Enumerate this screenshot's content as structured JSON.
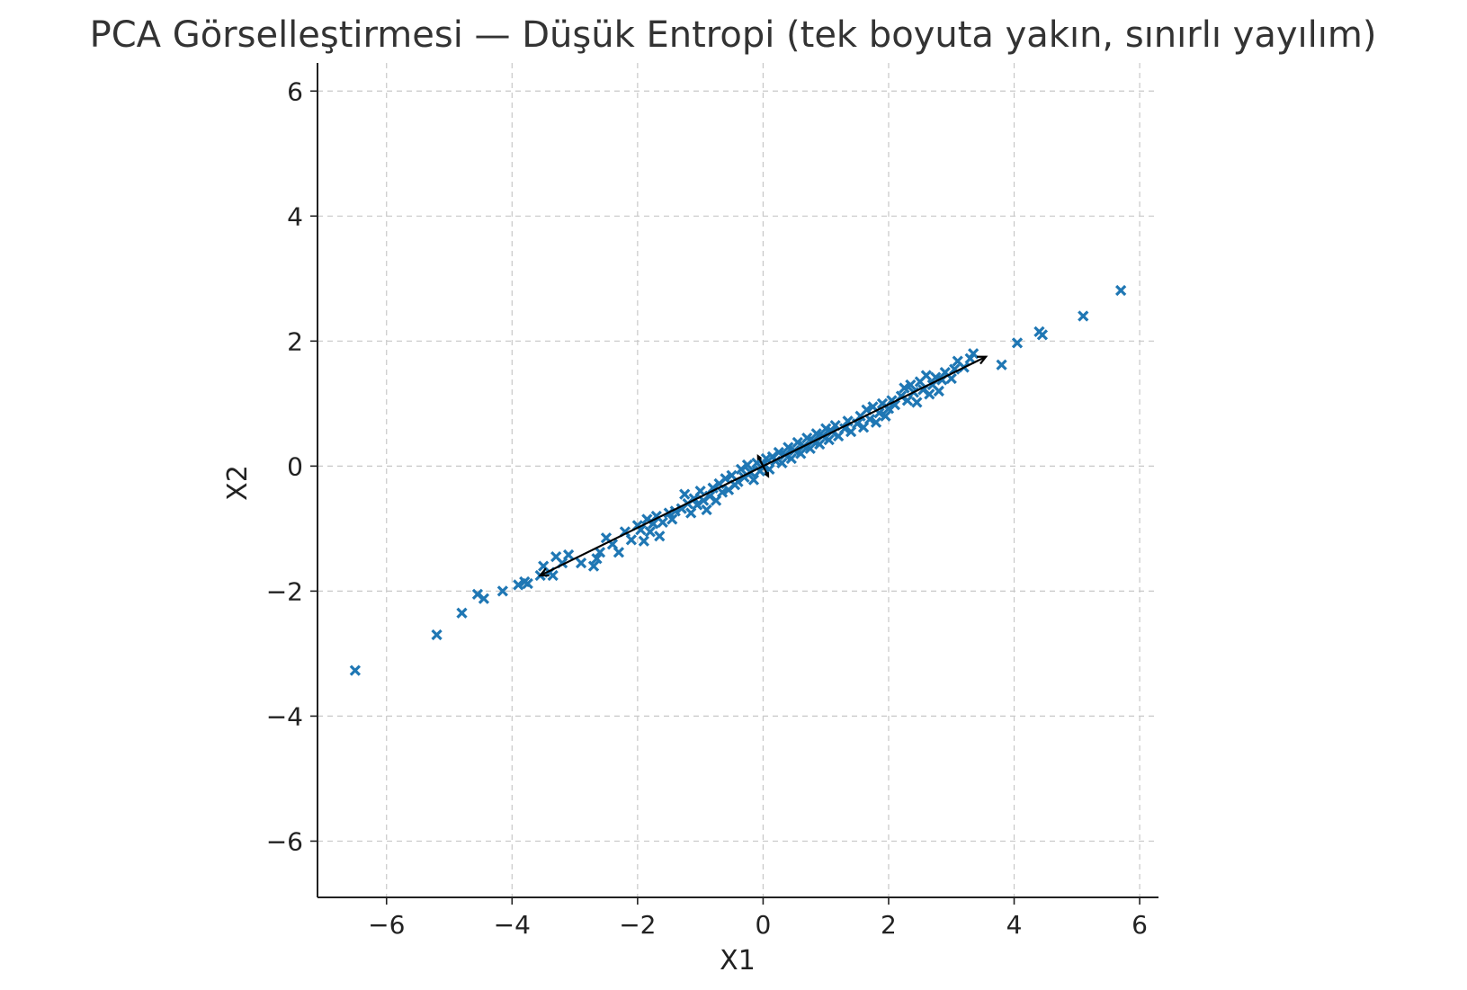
{
  "chart_data": {
    "type": "scatter",
    "title": "PCA Görselleştirmesi — Düşük Entropi (tek boyuta yakın, sınırlı yayılım)",
    "xlabel": "X1",
    "ylabel": "X2",
    "xlim": [
      -7.1,
      6.3
    ],
    "ylim": [
      -6.9,
      6.45
    ],
    "xticks": [
      -6,
      -4,
      -2,
      0,
      2,
      4,
      6
    ],
    "yticks": [
      -6,
      -4,
      -2,
      0,
      2,
      4,
      6
    ],
    "xtick_labels": [
      "−6",
      "−4",
      "−2",
      "0",
      "2",
      "4",
      "6"
    ],
    "ytick_labels": [
      "−6",
      "−4",
      "−2",
      "0",
      "2",
      "4",
      "6"
    ],
    "grid": true,
    "marker": "x",
    "color": "#1f77b4",
    "arrow_color": "#000000",
    "principal_components": [
      {
        "from": [
          0.0,
          0.0
        ],
        "to": [
          3.55,
          1.75
        ]
      },
      {
        "from": [
          0.0,
          0.0
        ],
        "to": [
          -3.55,
          -1.75
        ]
      },
      {
        "from": [
          0.0,
          0.0
        ],
        "to": [
          -0.08,
          0.16
        ]
      },
      {
        "from": [
          0.0,
          0.0
        ],
        "to": [
          0.08,
          -0.16
        ]
      }
    ],
    "points": [
      [
        -6.5,
        -3.27
      ],
      [
        -5.2,
        -2.7
      ],
      [
        -4.8,
        -2.35
      ],
      [
        -4.55,
        -2.05
      ],
      [
        -4.45,
        -2.12
      ],
      [
        -4.15,
        -2.0
      ],
      [
        -3.9,
        -1.9
      ],
      [
        -3.8,
        -1.85
      ],
      [
        -3.75,
        -1.88
      ],
      [
        -3.55,
        -1.75
      ],
      [
        -3.5,
        -1.6
      ],
      [
        -3.4,
        -1.7
      ],
      [
        -3.35,
        -1.75
      ],
      [
        -3.3,
        -1.45
      ],
      [
        -3.2,
        -1.55
      ],
      [
        -3.1,
        -1.42
      ],
      [
        -2.9,
        -1.55
      ],
      [
        -2.7,
        -1.6
      ],
      [
        -2.65,
        -1.48
      ],
      [
        -2.6,
        -1.38
      ],
      [
        -2.5,
        -1.15
      ],
      [
        -2.4,
        -1.25
      ],
      [
        -2.3,
        -1.38
      ],
      [
        -2.2,
        -1.05
      ],
      [
        -2.1,
        -1.18
      ],
      [
        -2.0,
        -0.95
      ],
      [
        -1.95,
        -1.02
      ],
      [
        -1.9,
        -1.2
      ],
      [
        -1.85,
        -0.85
      ],
      [
        -1.8,
        -1.05
      ],
      [
        -1.75,
        -0.92
      ],
      [
        -1.7,
        -0.8
      ],
      [
        -1.65,
        -1.12
      ],
      [
        -1.6,
        -0.9
      ],
      [
        -1.5,
        -0.75
      ],
      [
        -1.45,
        -0.85
      ],
      [
        -1.4,
        -0.72
      ],
      [
        -1.3,
        -0.68
      ],
      [
        -1.25,
        -0.45
      ],
      [
        -1.2,
        -0.6
      ],
      [
        -1.15,
        -0.75
      ],
      [
        -1.1,
        -0.52
      ],
      [
        -1.05,
        -0.62
      ],
      [
        -1.0,
        -0.4
      ],
      [
        -0.95,
        -0.55
      ],
      [
        -0.9,
        -0.7
      ],
      [
        -0.85,
        -0.48
      ],
      [
        -0.8,
        -0.35
      ],
      [
        -0.75,
        -0.55
      ],
      [
        -0.7,
        -0.28
      ],
      [
        -0.65,
        -0.42
      ],
      [
        -0.6,
        -0.2
      ],
      [
        -0.55,
        -0.38
      ],
      [
        -0.5,
        -0.15
      ],
      [
        -0.45,
        -0.3
      ],
      [
        -0.4,
        -0.25
      ],
      [
        -0.35,
        -0.05
      ],
      [
        -0.3,
        -0.18
      ],
      [
        -0.25,
        0.02
      ],
      [
        -0.2,
        -0.1
      ],
      [
        -0.15,
        -0.22
      ],
      [
        -0.1,
        0.05
      ],
      [
        -0.05,
        -0.08
      ],
      [
        0.0,
        0.02
      ],
      [
        0.05,
        0.12
      ],
      [
        0.1,
        -0.05
      ],
      [
        0.15,
        0.15
      ],
      [
        0.2,
        0.08
      ],
      [
        0.25,
        0.22
      ],
      [
        0.3,
        0.05
      ],
      [
        0.35,
        0.18
      ],
      [
        0.4,
        0.3
      ],
      [
        0.45,
        0.12
      ],
      [
        0.5,
        0.25
      ],
      [
        0.55,
        0.38
      ],
      [
        0.6,
        0.2
      ],
      [
        0.65,
        0.32
      ],
      [
        0.7,
        0.45
      ],
      [
        0.75,
        0.28
      ],
      [
        0.8,
        0.4
      ],
      [
        0.85,
        0.52
      ],
      [
        0.9,
        0.35
      ],
      [
        0.95,
        0.48
      ],
      [
        1.0,
        0.6
      ],
      [
        1.05,
        0.42
      ],
      [
        1.1,
        0.55
      ],
      [
        1.15,
        0.65
      ],
      [
        1.2,
        0.48
      ],
      [
        1.3,
        0.6
      ],
      [
        1.35,
        0.72
      ],
      [
        1.4,
        0.55
      ],
      [
        1.5,
        0.68
      ],
      [
        1.55,
        0.8
      ],
      [
        1.6,
        0.62
      ],
      [
        1.65,
        0.9
      ],
      [
        1.7,
        0.75
      ],
      [
        1.75,
        0.95
      ],
      [
        1.8,
        0.7
      ],
      [
        1.85,
        0.85
      ],
      [
        1.9,
        1.0
      ],
      [
        1.95,
        0.8
      ],
      [
        2.0,
        0.92
      ],
      [
        2.05,
        1.05
      ],
      [
        2.1,
        0.98
      ],
      [
        2.2,
        1.12
      ],
      [
        2.25,
        1.25
      ],
      [
        2.3,
        1.05
      ],
      [
        2.35,
        1.3
      ],
      [
        2.4,
        1.18
      ],
      [
        2.45,
        1.02
      ],
      [
        2.5,
        1.35
      ],
      [
        2.55,
        1.22
      ],
      [
        2.6,
        1.45
      ],
      [
        2.65,
        1.15
      ],
      [
        2.7,
        1.3
      ],
      [
        2.75,
        1.42
      ],
      [
        2.8,
        1.2
      ],
      [
        2.85,
        1.38
      ],
      [
        2.9,
        1.5
      ],
      [
        3.0,
        1.4
      ],
      [
        3.05,
        1.55
      ],
      [
        3.1,
        1.68
      ],
      [
        3.2,
        1.58
      ],
      [
        3.3,
        1.72
      ],
      [
        3.35,
        1.8
      ],
      [
        3.8,
        1.62
      ],
      [
        4.05,
        1.97
      ],
      [
        4.4,
        2.15
      ],
      [
        4.45,
        2.1
      ],
      [
        5.1,
        2.4
      ],
      [
        5.7,
        2.81
      ]
    ]
  }
}
